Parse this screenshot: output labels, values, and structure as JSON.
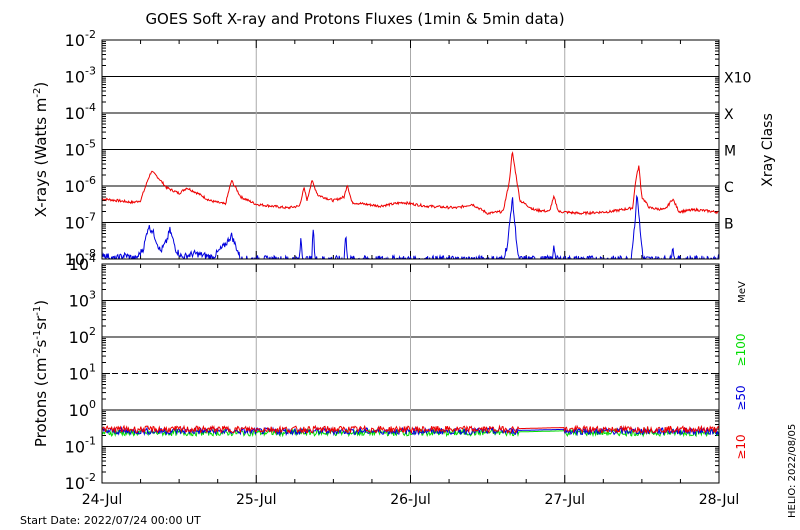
{
  "title": "GOES Soft X-ray and Protons Fluxes   (1min & 5min data)",
  "start_date": "Start Date: 2022/07/24 00:00 UT",
  "helio_stamp": "HELIO: 2022/08/05",
  "colors": {
    "xray_short": "#0000dd",
    "xray_long": "#ee0000",
    "p10": "#ee0000",
    "p50": "#0000dd",
    "p100": "#00dd00",
    "daygrid": "#aaaaaa"
  },
  "chart_data": [
    {
      "type": "line",
      "name": "xray-panel",
      "ylabel": "X-rays (Watts m",
      "ylabel_sup": "-2",
      "ylabel_tail": ")",
      "y_scale": "log",
      "ylim_exp": [
        -8,
        -2
      ],
      "y_tick_exps": [
        -8,
        -7,
        -6,
        -5,
        -4,
        -3,
        -2
      ],
      "x_categories": [
        "24-Jul",
        "25-Jul",
        "26-Jul",
        "27-Jul",
        "28-Jul"
      ],
      "right_axis_label": "Xray Class",
      "classes": [
        {
          "label": "B",
          "exp": -7
        },
        {
          "label": "C",
          "exp": -6
        },
        {
          "label": "M",
          "exp": -5
        },
        {
          "label": "X",
          "exp": -4
        },
        {
          "label": "X10",
          "exp": -3
        }
      ],
      "series": [
        {
          "key": "long",
          "points": [
            [
              0.0,
              -6.35
            ],
            [
              0.1,
              -6.4
            ],
            [
              0.2,
              -6.45
            ],
            [
              0.25,
              -6.4
            ],
            [
              0.3,
              -5.8
            ],
            [
              0.32,
              -5.6
            ],
            [
              0.36,
              -5.75
            ],
            [
              0.42,
              -6.05
            ],
            [
              0.5,
              -6.2
            ],
            [
              0.55,
              -6.05
            ],
            [
              0.62,
              -6.2
            ],
            [
              0.7,
              -6.4
            ],
            [
              0.8,
              -6.5
            ],
            [
              0.84,
              -5.85
            ],
            [
              0.9,
              -6.3
            ],
            [
              1.0,
              -6.5
            ],
            [
              1.2,
              -6.6
            ],
            [
              1.28,
              -6.55
            ],
            [
              1.31,
              -6.05
            ],
            [
              1.33,
              -6.4
            ],
            [
              1.36,
              -5.85
            ],
            [
              1.4,
              -6.25
            ],
            [
              1.5,
              -6.4
            ],
            [
              1.57,
              -6.3
            ],
            [
              1.59,
              -5.95
            ],
            [
              1.62,
              -6.45
            ],
            [
              1.8,
              -6.55
            ],
            [
              1.95,
              -6.45
            ],
            [
              2.1,
              -6.55
            ],
            [
              2.3,
              -6.6
            ],
            [
              2.4,
              -6.5
            ],
            [
              2.5,
              -6.75
            ],
            [
              2.6,
              -6.7
            ],
            [
              2.64,
              -5.9
            ],
            [
              2.66,
              -5.05
            ],
            [
              2.68,
              -5.6
            ],
            [
              2.71,
              -6.4
            ],
            [
              2.8,
              -6.65
            ],
            [
              2.9,
              -6.7
            ],
            [
              2.93,
              -6.3
            ],
            [
              2.96,
              -6.7
            ],
            [
              3.1,
              -6.75
            ],
            [
              3.3,
              -6.7
            ],
            [
              3.44,
              -6.6
            ],
            [
              3.46,
              -5.85
            ],
            [
              3.48,
              -5.45
            ],
            [
              3.5,
              -6.3
            ],
            [
              3.55,
              -6.6
            ],
            [
              3.65,
              -6.65
            ],
            [
              3.7,
              -6.35
            ],
            [
              3.74,
              -6.7
            ],
            [
              3.85,
              -6.65
            ],
            [
              4.0,
              -6.72
            ]
          ]
        },
        {
          "key": "short",
          "points": [
            [
              0.0,
              -7.85
            ],
            [
              0.05,
              -7.95
            ],
            [
              0.08,
              -8.0
            ],
            [
              0.15,
              -7.9
            ],
            [
              0.22,
              -8.0
            ],
            [
              0.27,
              -7.7
            ],
            [
              0.3,
              -7.1
            ],
            [
              0.33,
              -7.25
            ],
            [
              0.38,
              -7.8
            ],
            [
              0.42,
              -7.5
            ],
            [
              0.44,
              -7.2
            ],
            [
              0.48,
              -7.75
            ],
            [
              0.52,
              -7.95
            ],
            [
              0.6,
              -7.85
            ],
            [
              0.72,
              -7.95
            ],
            [
              0.8,
              -7.6
            ],
            [
              0.84,
              -7.35
            ],
            [
              0.9,
              -8.0
            ],
            [
              1.2,
              -8.0
            ],
            [
              1.28,
              -8.0
            ],
            [
              1.29,
              -7.4
            ],
            [
              1.3,
              -8.0
            ],
            [
              1.36,
              -8.0
            ],
            [
              1.37,
              -7.0
            ],
            [
              1.38,
              -8.0
            ],
            [
              1.57,
              -8.0
            ],
            [
              1.58,
              -7.25
            ],
            [
              1.59,
              -8.0
            ],
            [
              2.6,
              -8.0
            ],
            [
              2.63,
              -7.6
            ],
            [
              2.66,
              -6.3
            ],
            [
              2.68,
              -7.2
            ],
            [
              2.7,
              -8.0
            ],
            [
              2.92,
              -8.0
            ],
            [
              2.93,
              -7.55
            ],
            [
              2.94,
              -8.0
            ],
            [
              3.43,
              -8.0
            ],
            [
              3.45,
              -7.2
            ],
            [
              3.47,
              -6.2
            ],
            [
              3.49,
              -7.3
            ],
            [
              3.51,
              -8.0
            ],
            [
              3.69,
              -8.0
            ],
            [
              3.7,
              -7.55
            ],
            [
              3.71,
              -8.0
            ],
            [
              4.0,
              -8.0
            ]
          ]
        }
      ]
    },
    {
      "type": "line",
      "name": "proton-panel",
      "ylabel": "Protons (cm",
      "ylabel_sup": "-2",
      "ylabel_mid": "s",
      "ylabel_sup2": "-1",
      "ylabel_mid2": "sr",
      "ylabel_sup3": "-1",
      "ylabel_tail": ")",
      "y_scale": "log",
      "ylim_exp": [
        -2,
        4
      ],
      "y_tick_exps": [
        -2,
        -1,
        0,
        1,
        2,
        3,
        4
      ],
      "threshold_exp": 1,
      "x_categories": [
        "24-Jul",
        "25-Jul",
        "26-Jul",
        "27-Jul",
        "28-Jul"
      ],
      "energy_unit": "MeV",
      "energy_labels": [
        {
          "text": "≥100",
          "color_key": "p100"
        },
        {
          "text": "≥50",
          "color_key": "p50"
        },
        {
          "text": "≥10",
          "color_key": "p10"
        }
      ],
      "series": [
        {
          "key": "p10",
          "baseline": -0.53
        },
        {
          "key": "p50",
          "baseline": -0.58
        },
        {
          "key": "p100",
          "baseline": -0.62
        }
      ]
    }
  ]
}
